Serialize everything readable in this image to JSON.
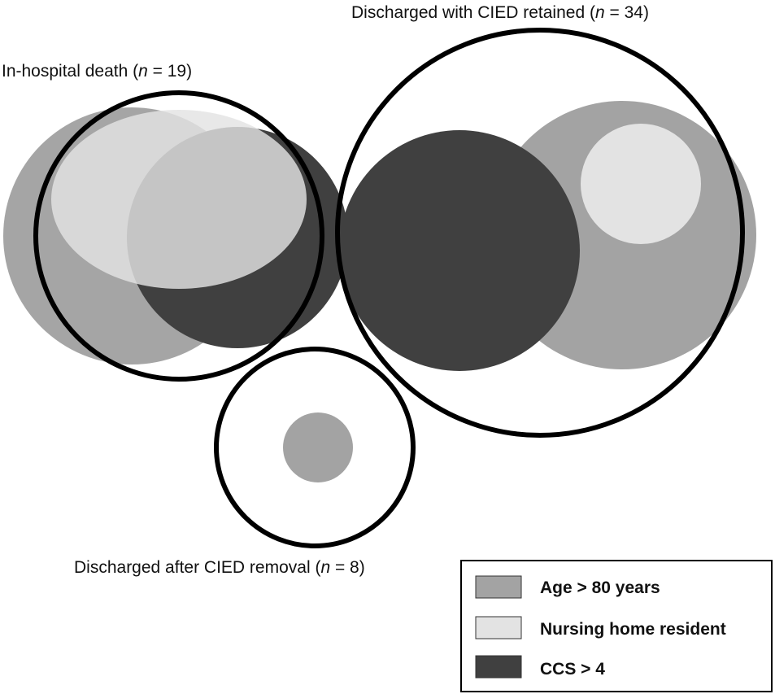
{
  "colors": {
    "age": "#a3a3a3",
    "nursing": "#e3e3e3",
    "ccs": "#404040",
    "outline": "#000000",
    "background": "#ffffff"
  },
  "groups": {
    "death": {
      "prefix": "In-hospital death (",
      "n_symbol": "n",
      "suffix": " = 19)",
      "n": 19
    },
    "retained": {
      "prefix": "Discharged with CIED retained (",
      "n_symbol": "n",
      "suffix": " = 34)",
      "n": 34
    },
    "removal": {
      "prefix": "Discharged after CIED removal (",
      "n_symbol": "n",
      "suffix": " = 8)",
      "n": 8
    }
  },
  "legend": {
    "items": [
      {
        "key": "age",
        "label": "Age > 80 years"
      },
      {
        "key": "nursing",
        "label": "Nursing home resident"
      },
      {
        "key": "ccs",
        "label": "CCS > 4"
      }
    ]
  }
}
